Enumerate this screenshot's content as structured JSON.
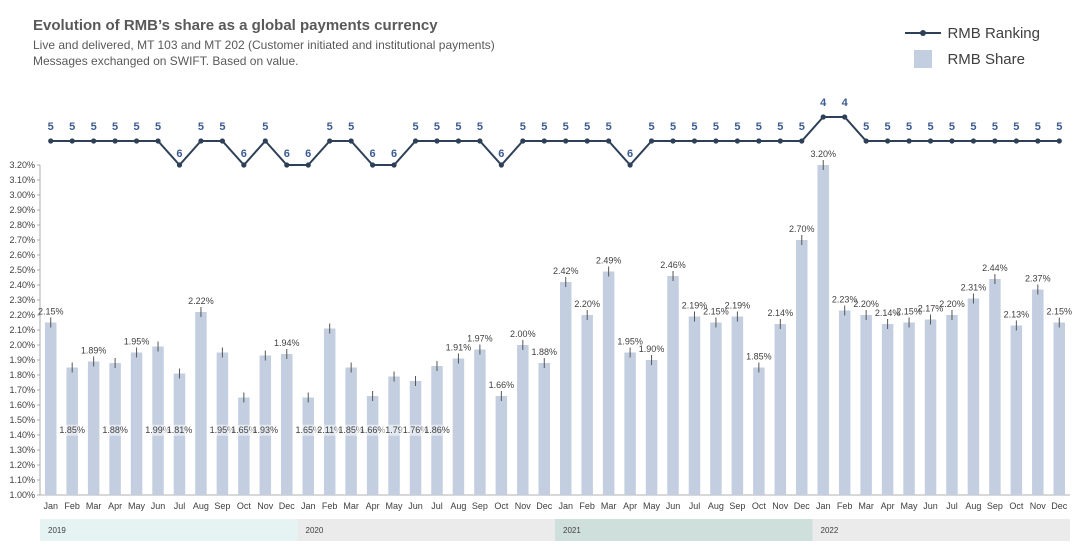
{
  "title": "Evolution of RMB’s share as a global payments currency",
  "subtitle_1": "Live and delivered, MT 103 and MT 202 (Customer initiated and institutional payments)",
  "subtitle_2": "Messages exchanged on SWIFT. Based on value.",
  "legend": {
    "ranking": "RMB Ranking",
    "share": "RMB Share"
  },
  "colors": {
    "bar": "#c3cfe1",
    "line": "#2e4057",
    "rank_label": "#3b5b92",
    "year_2019": "#e6f3f3",
    "year_2020": "#ebebeb",
    "year_2021": "#cfe0dc",
    "year_2022": "#ebebeb"
  },
  "chart_data": {
    "type": "bar",
    "x": [
      "Jan",
      "Feb",
      "Mar",
      "Apr",
      "May",
      "Jun",
      "Jul",
      "Aug",
      "Sep",
      "Oct",
      "Nov",
      "Dec",
      "Jan",
      "Feb",
      "Mar",
      "Apr",
      "May",
      "Jun",
      "Jul",
      "Aug",
      "Sep",
      "Oct",
      "Nov",
      "Dec",
      "Jan",
      "Feb",
      "Mar",
      "Apr",
      "May",
      "Jun",
      "Jul",
      "Aug",
      "Sep",
      "Oct",
      "Nov",
      "Dec",
      "Jan",
      "Feb",
      "Mar",
      "Apr",
      "May",
      "Jun",
      "Jul",
      "Aug",
      "Sep",
      "Oct",
      "Nov",
      "Dec"
    ],
    "years": [
      {
        "label": "2019",
        "start": 0,
        "count": 12
      },
      {
        "label": "2020",
        "start": 12,
        "count": 12
      },
      {
        "label": "2021",
        "start": 24,
        "count": 12
      },
      {
        "label": "2022",
        "start": 36,
        "count": 12
      }
    ],
    "series": [
      {
        "name": "RMB Share",
        "values": [
          2.15,
          1.85,
          1.89,
          1.88,
          1.95,
          1.99,
          1.81,
          2.22,
          1.95,
          1.65,
          1.93,
          1.94,
          1.65,
          2.11,
          1.85,
          1.66,
          1.79,
          1.76,
          1.86,
          1.91,
          1.97,
          1.66,
          2.0,
          1.88,
          2.42,
          2.2,
          2.49,
          1.95,
          1.9,
          2.46,
          2.19,
          2.15,
          2.19,
          1.85,
          2.14,
          2.7,
          3.2,
          2.23,
          2.2,
          2.14,
          2.15,
          2.17,
          2.2,
          2.31,
          2.44,
          2.13,
          2.37,
          2.15
        ],
        "labels": [
          "2.15%",
          "1.85%",
          "1.89%",
          "1.88%",
          "1.95%",
          "1.99%",
          "1.81%",
          "2.22%",
          "1.95%",
          "1.65%",
          "1.93%",
          "1.94%",
          "1.65%",
          "2.11%",
          "1.85%",
          "1.66%",
          "1.79",
          "1.76%",
          "1.86%",
          "1.91%",
          "1.97%",
          "1.66%",
          "2.00%",
          "1.88%",
          "2.42%",
          "2.20%",
          "2.49%",
          "1.95%",
          "1.90%",
          "2.46%",
          "2.19%",
          "2.15%",
          "2.19%",
          "1.85%",
          "2.14%",
          "2.70%",
          "3.20%",
          "2.23%",
          "2.20%",
          "2.14%",
          "2.15%",
          "2.17%",
          "2.20%",
          "2.31%",
          "2.44%",
          "2.13%",
          "2.37%",
          "2.15%"
        ]
      },
      {
        "name": "RMB Ranking",
        "values": [
          5,
          5,
          5,
          5,
          5,
          5,
          6,
          5,
          5,
          6,
          5,
          6,
          6,
          5,
          5,
          6,
          6,
          5,
          5,
          5,
          5,
          6,
          5,
          5,
          5,
          5,
          5,
          6,
          5,
          5,
          5,
          5,
          5,
          5,
          5,
          5,
          4,
          4,
          5,
          5,
          5,
          5,
          5,
          5,
          5,
          5,
          5,
          5
        ]
      }
    ],
    "yticks": [
      "3.20%",
      "3.10%",
      "3.00%",
      "2.90%",
      "2.80%",
      "2.70%",
      "2.60%",
      "2.50%",
      "2.40%",
      "2.30%",
      "2.20%",
      "2.10%",
      "2.00%",
      "1.90%",
      "1.80%",
      "1.70%",
      "1.60%",
      "1.50%",
      "1.40%",
      "1.30%",
      "1.20%",
      "1.10%",
      "1.00%"
    ],
    "ylim": [
      1.0,
      3.2
    ],
    "bar_labels_inside": [
      1,
      3,
      5,
      6,
      8,
      9,
      10,
      12,
      13,
      14,
      15,
      16,
      17,
      18,
      37,
      38,
      39,
      40,
      41,
      42,
      43,
      45,
      47
    ]
  }
}
